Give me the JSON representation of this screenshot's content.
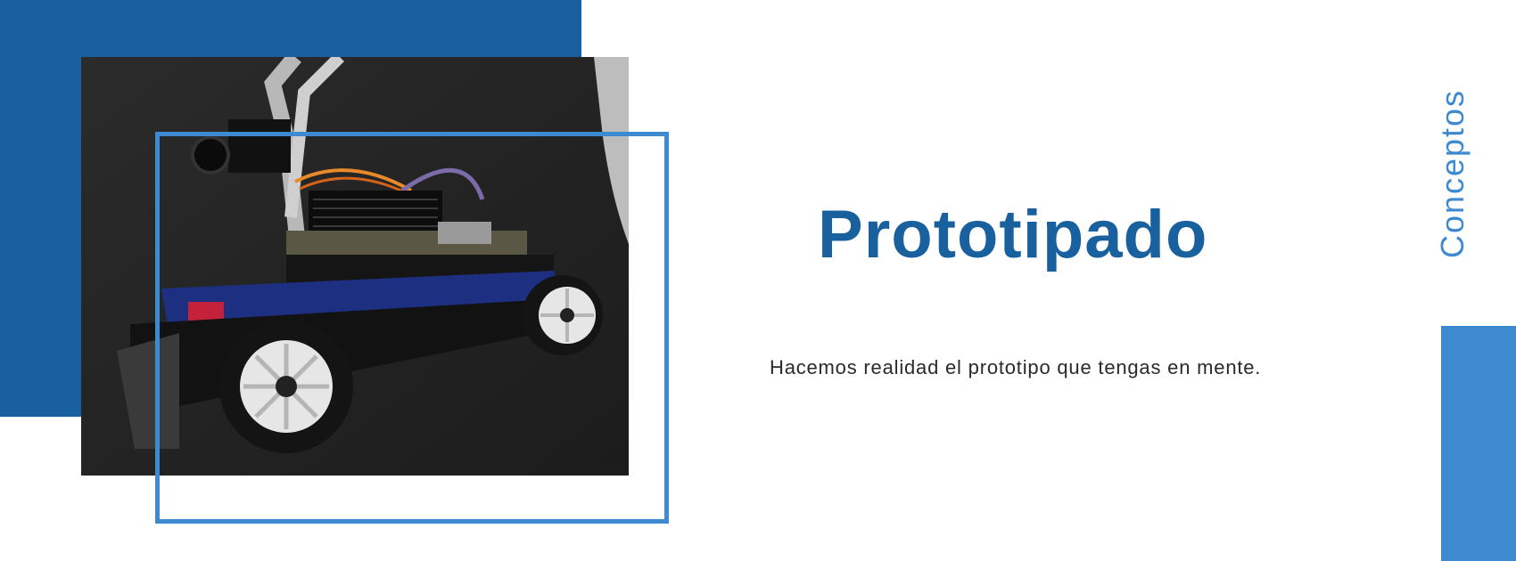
{
  "hero": {
    "title": "Prototipado",
    "subtitle": "Hacemos realidad el prototipo que tengas en mente.",
    "side_label": "Conceptos"
  },
  "image": {
    "subject": "prototype-rc-car"
  },
  "colors": {
    "primary": "#19609e",
    "accent": "#3d8ad0",
    "background": "#ffffff",
    "body_text": "#2a2a2a"
  }
}
